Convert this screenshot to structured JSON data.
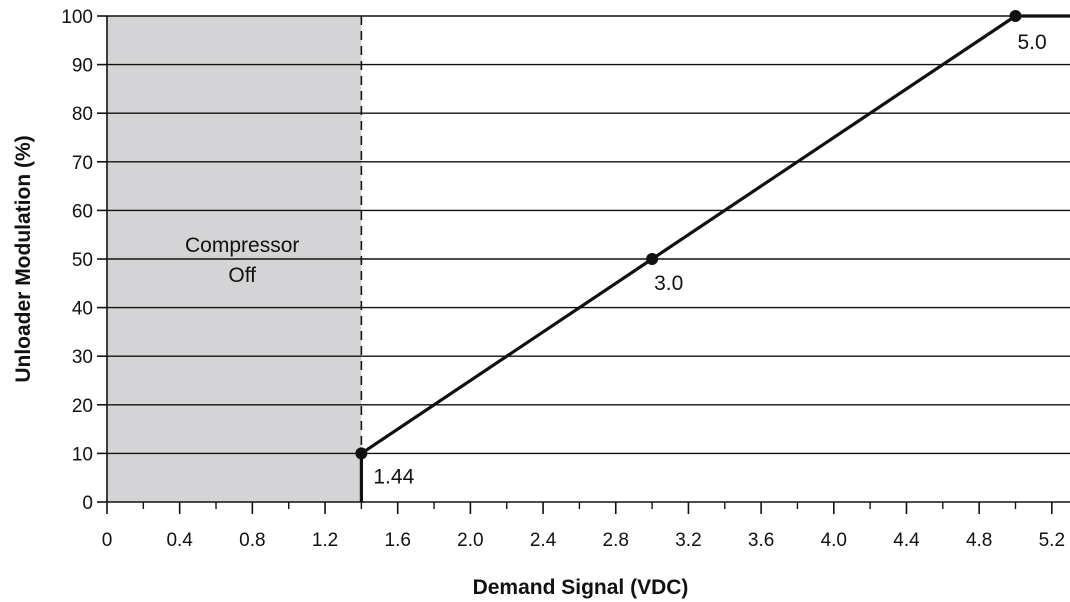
{
  "chart_data": {
    "type": "line",
    "title": "",
    "xlabel": "Demand Signal (VDC)",
    "ylabel": "Unloader Modulation (%)",
    "xlim": [
      0,
      5.3
    ],
    "ylim": [
      0,
      100
    ],
    "x_ticks": [
      0,
      0.4,
      0.8,
      1.2,
      1.6,
      2.0,
      2.4,
      2.8,
      3.2,
      3.6,
      4.0,
      4.4,
      4.8,
      5.2
    ],
    "x_tick_labels": [
      "0",
      "0.4",
      "0.8",
      "1.2",
      "1.6",
      "2.0",
      "2.4",
      "2.8",
      "3.2",
      "3.6",
      "4.0",
      "4.4",
      "4.8",
      "5.2"
    ],
    "x_minor_ticks": [
      0.2,
      0.6,
      1.0,
      1.4,
      1.8,
      2.2,
      2.6,
      3.0,
      3.4,
      3.8,
      4.2,
      4.6,
      5.0
    ],
    "y_ticks": [
      0,
      10,
      20,
      30,
      40,
      50,
      60,
      70,
      80,
      90,
      100
    ],
    "y_tick_labels": [
      "0",
      "10",
      "20",
      "30",
      "40",
      "50",
      "60",
      "70",
      "80",
      "90",
      "100"
    ],
    "grid": "horizontal",
    "shaded_region": {
      "x_start": 0,
      "x_end": 1.4,
      "color": "#d4d4d6",
      "label_line1": "Compressor",
      "label_line2": "Off"
    },
    "cutoff_x": 1.4,
    "series": [
      {
        "points": [
          [
            1.4,
            0
          ],
          [
            1.4,
            10
          ],
          [
            3.0,
            50
          ],
          [
            5.0,
            100
          ],
          [
            5.3,
            100
          ]
        ]
      }
    ],
    "markers": [
      {
        "x": 1.4,
        "y": 10,
        "label": "1.44"
      },
      {
        "x": 3.0,
        "y": 50,
        "label": "3.0"
      },
      {
        "x": 5.0,
        "y": 100,
        "label": "5.0"
      }
    ],
    "colors": {
      "line": "#111111",
      "grid": "#111111",
      "shade": "#d4d4d6"
    }
  }
}
